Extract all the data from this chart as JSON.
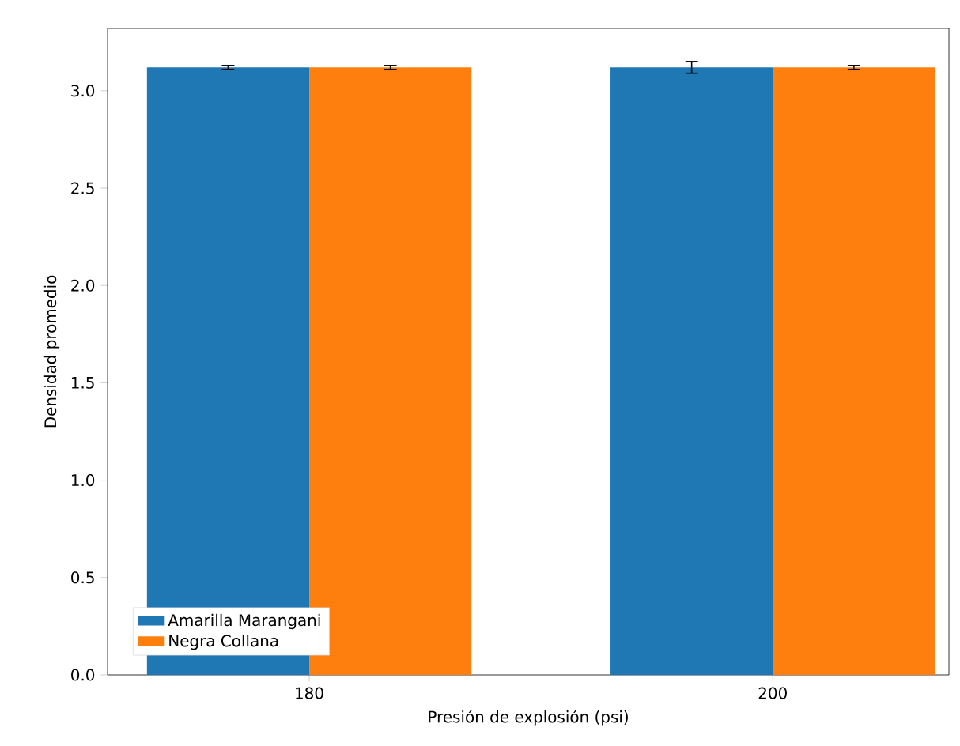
{
  "chart_data": {
    "type": "bar",
    "xlabel": "Presión de explosión (psi)",
    "ylabel": "Densidad promedio",
    "categories": [
      "180",
      "200"
    ],
    "series": [
      {
        "name": "Amarilla Marangani",
        "color": "#1f77b4",
        "values": [
          3.12,
          3.12
        ],
        "errors": [
          0.01,
          0.03
        ]
      },
      {
        "name": "Negra Collana",
        "color": "#ff7f0e",
        "values": [
          3.12,
          3.12
        ],
        "errors": [
          0.01,
          0.01
        ]
      }
    ],
    "ylim": [
      0,
      3.32
    ],
    "yticks": [
      {
        "value": 0,
        "label": "0.0"
      },
      {
        "value": 0.5,
        "label": "0.5"
      },
      {
        "value": 1,
        "label": "1.0"
      },
      {
        "value": 1.5,
        "label": "1.5"
      },
      {
        "value": 2,
        "label": "2.0"
      },
      {
        "value": 2.5,
        "label": "2.5"
      },
      {
        "value": 3,
        "label": "3.0"
      }
    ],
    "legend": "bottom left",
    "grid": false
  }
}
